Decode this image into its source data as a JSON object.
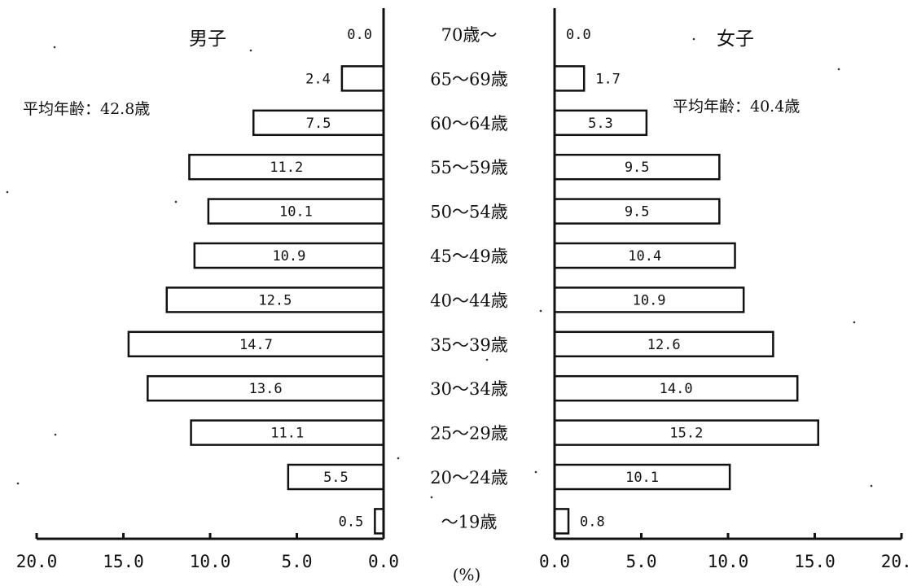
{
  "chart_data": {
    "type": "bar",
    "orientation": "horizontal",
    "categories": [
      "70歳〜",
      "65〜69歳",
      "60〜64歳",
      "55〜59歳",
      "50〜54歳",
      "45〜49歳",
      "40〜44歳",
      "35〜39歳",
      "30〜34歳",
      "25〜29歳",
      "20〜24歳",
      "〜19歳"
    ],
    "series": [
      {
        "name": "男子",
        "values": [
          0.0,
          2.4,
          7.5,
          11.2,
          10.1,
          10.9,
          12.5,
          14.7,
          13.6,
          11.1,
          5.5,
          0.5
        ],
        "labels": [
          "0.0",
          "2.4",
          "7.5",
          "11.2",
          "10.1",
          "10.9",
          "12.5",
          "14.7",
          "13.6",
          "11.1",
          "5.5",
          "0.5"
        ],
        "note": "平均年齢：42.8歳"
      },
      {
        "name": "女子",
        "values": [
          0.0,
          1.7,
          5.3,
          9.5,
          9.5,
          10.4,
          10.9,
          12.6,
          14.0,
          15.2,
          10.1,
          0.8
        ],
        "labels": [
          "0.0",
          "1.7",
          "5.3",
          "9.5",
          "9.5",
          "10.4",
          "10.9",
          "12.6",
          "14.0",
          "15.2",
          "10.1",
          "0.8"
        ],
        "note": "平均年齢：40.4歳"
      }
    ],
    "xlim": [
      0,
      20
    ],
    "ticks": [
      0,
      5,
      10,
      15,
      20
    ],
    "left_tick_labels": [
      "20.0",
      "15.0",
      "10.0",
      "5.0",
      "0.0"
    ],
    "right_tick_labels": [
      "0.0",
      "5.0",
      "10.0",
      "15.0",
      "20.0"
    ],
    "unit_label": "(%)",
    "grid": false
  }
}
